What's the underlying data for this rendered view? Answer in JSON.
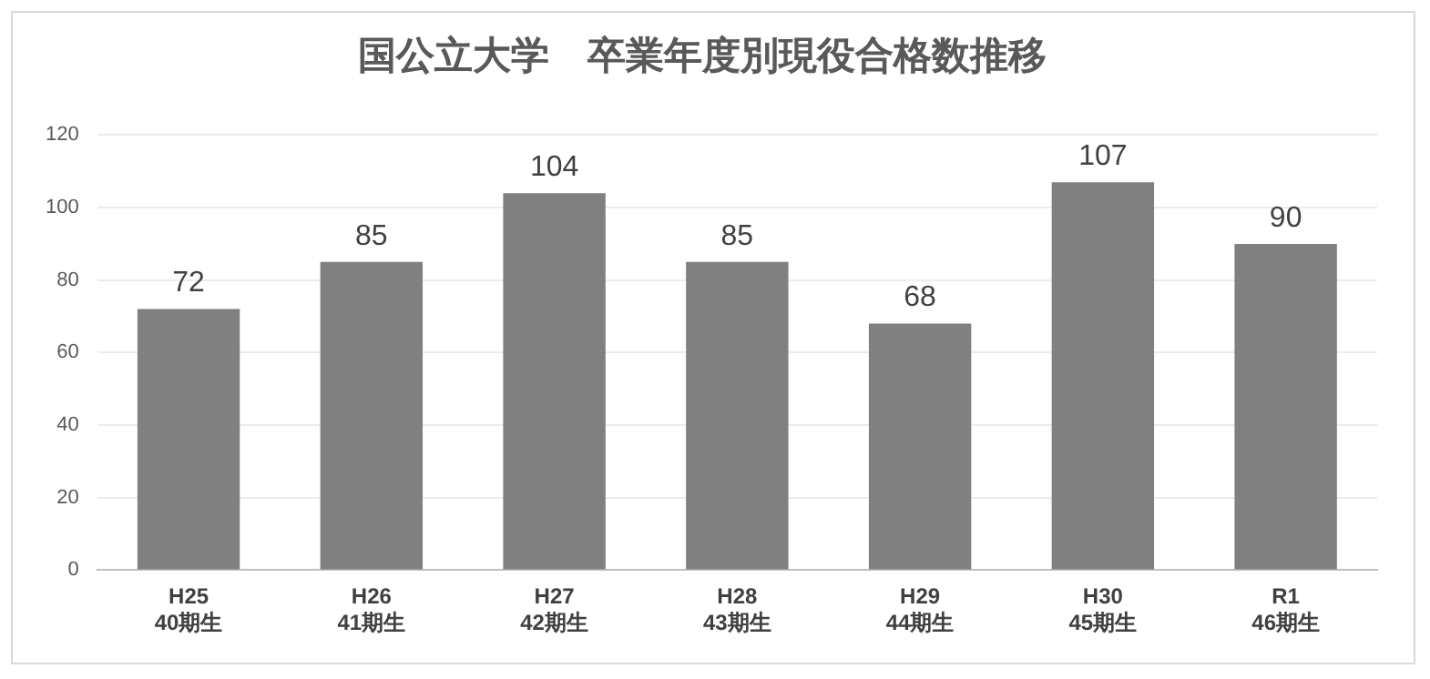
{
  "chart_data": {
    "type": "bar",
    "title": "国公立大学　卒業年度別現役合格数推移",
    "categories": [
      "H25\n40期生",
      "H26\n41期生",
      "H27\n42期生",
      "H28\n43期生",
      "H29\n44期生",
      "H30\n45期生",
      "R1\n46期生"
    ],
    "values": [
      72,
      85,
      104,
      85,
      68,
      107,
      90
    ],
    "color": "#808080",
    "ylim": [
      0,
      120
    ],
    "yticks": [
      0,
      20,
      40,
      60,
      80,
      100,
      120
    ],
    "grid": "y",
    "data_labels": true,
    "legend": false
  }
}
